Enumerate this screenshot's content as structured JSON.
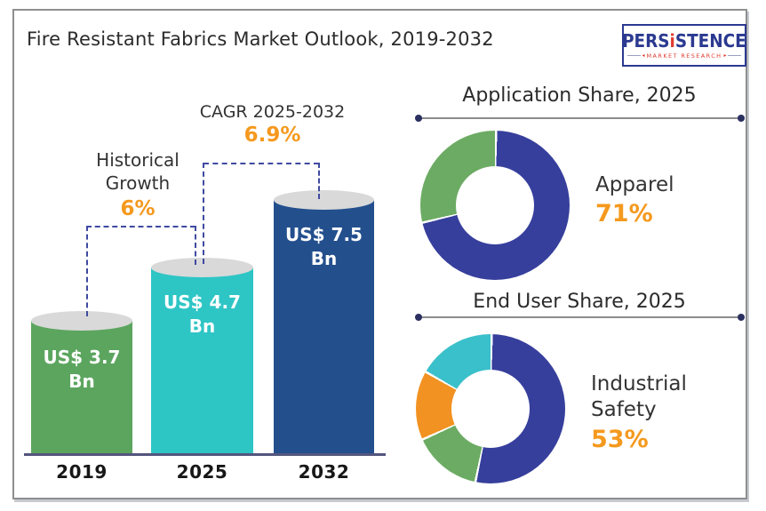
{
  "header": {
    "title": "Fire Resistant Fabrics Market Outlook, 2019-2032",
    "logo": {
      "brand_pre": "PERS",
      "brand_i": "i",
      "brand_post": "STENCE",
      "tagline": "MARKET RESEARCH",
      "arrow_left": "◂",
      "arrow_right": "▸"
    }
  },
  "bar_chart": {
    "historical_line1": "Historical",
    "historical_line2": "Growth",
    "historical_value": "6%",
    "cagr_label": "CAGR 2025-2032",
    "cagr_value": "6.9%",
    "bars": [
      {
        "year": "2019",
        "value_label": "US$ 3.7",
        "unit": "Bn"
      },
      {
        "year": "2025",
        "value_label": "US$ 4.7",
        "unit": "Bn"
      },
      {
        "year": "2032",
        "value_label": "US$ 7.5",
        "unit": "Bn"
      }
    ]
  },
  "donut_sections": [
    {
      "title": "Application Share, 2025",
      "label_line1": "Apparel",
      "label_line2": "",
      "value": "71%"
    },
    {
      "title": "End User Share, 2025",
      "label_line1": "Industrial",
      "label_line2": "Safety",
      "value": "53%"
    }
  ],
  "colors": {
    "bar_green": "#5ca55f",
    "bar_teal": "#2ec5c5",
    "bar_navy": "#234f8d",
    "donut_navy": "#363f9c",
    "donut_green": "#6cab63",
    "donut_orange": "#f29222",
    "donut_teal": "#3ac0cb",
    "accent_orange": "#f5991e",
    "dashed_line": "#3f4aa0",
    "logo_navy": "#2b3990",
    "logo_red": "#e03c31"
  },
  "chart_data": [
    {
      "type": "bar",
      "title": "Fire Resistant Fabrics Market Outlook, 2019-2032",
      "categories": [
        "2019",
        "2025",
        "2032"
      ],
      "values": [
        3.7,
        4.7,
        7.5
      ],
      "unit": "US$ Bn",
      "colors": [
        "#5ca55f",
        "#2ec5c5",
        "#234f8d"
      ],
      "annotations": {
        "historical_growth": "6%",
        "cagr_2025_2032": "6.9%"
      }
    },
    {
      "type": "pie",
      "title": "Application Share, 2025",
      "slices": [
        {
          "label": "Apparel",
          "pct": 71,
          "color": "#363f9c"
        },
        {
          "label": "",
          "pct": 29,
          "color": "#6cab63"
        }
      ],
      "highlight": {
        "label": "Apparel",
        "value": "71%"
      }
    },
    {
      "type": "pie",
      "title": "End User Share, 2025",
      "slices": [
        {
          "label": "Industrial Safety",
          "pct": 53,
          "color": "#363f9c"
        },
        {
          "label": "",
          "pct": 15,
          "color": "#6cab63"
        },
        {
          "label": "",
          "pct": 15,
          "color": "#f29222"
        },
        {
          "label": "",
          "pct": 17,
          "color": "#3ac0cb"
        }
      ],
      "highlight": {
        "label": "Industrial Safety",
        "value": "53%"
      }
    }
  ]
}
